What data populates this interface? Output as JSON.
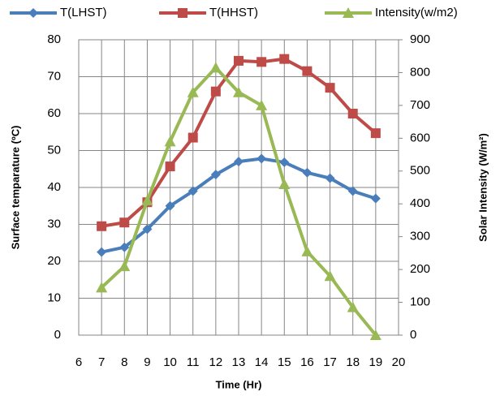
{
  "chart_data": {
    "type": "line",
    "x_label": "Time (Hr)",
    "y_label": "Surface temparature (ºC)",
    "y2_label": "Solar Intensity (W/m²)",
    "x": [
      7,
      8,
      9,
      10,
      11,
      12,
      13,
      14,
      15,
      16,
      17,
      18,
      19
    ],
    "series": [
      {
        "name": "T(LHST)",
        "color": "#4a7ebb",
        "marker": "diamond",
        "values": [
          22.5,
          23.8,
          28.7,
          35,
          39,
          43.5,
          47,
          47.8,
          46.8,
          44,
          42.5,
          39,
          37
        ]
      },
      {
        "name": "T(HHST)",
        "color": "#be4b48",
        "marker": "square",
        "values": [
          29.5,
          30.5,
          36,
          45.7,
          53.5,
          66,
          74.3,
          74,
          74.8,
          71.5,
          67,
          60,
          54.7
        ]
      },
      {
        "name": "Intensity(w/m2)",
        "color": "#98b954",
        "marker": "triangle",
        "axis": "y2",
        "values": [
          145,
          210,
          410,
          590,
          740,
          815,
          740,
          700,
          460,
          255,
          180,
          85,
          0
        ]
      }
    ],
    "xlim": [
      6,
      20
    ],
    "xticks": [
      6,
      7,
      8,
      9,
      10,
      11,
      12,
      13,
      14,
      15,
      16,
      17,
      18,
      19,
      20
    ],
    "ylim": [
      0,
      80
    ],
    "yticks": [
      0,
      10,
      20,
      30,
      40,
      50,
      60,
      70,
      80
    ],
    "y2lim": [
      0,
      900
    ],
    "y2ticks": [
      0,
      100,
      200,
      300,
      400,
      500,
      600,
      700,
      800,
      900
    ],
    "grid": true,
    "legend": "top"
  }
}
